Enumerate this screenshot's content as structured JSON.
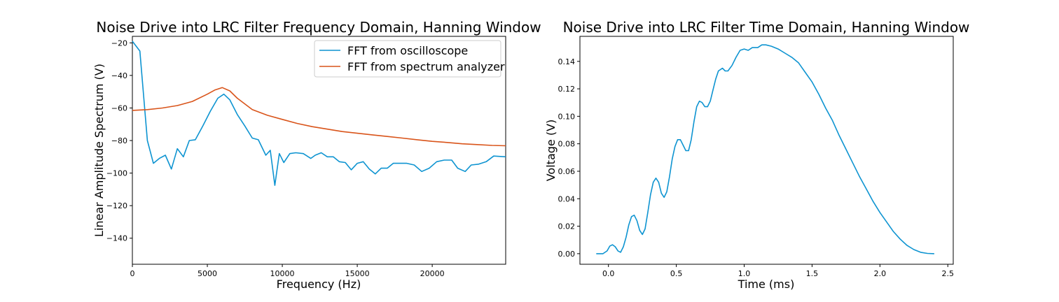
{
  "colors": {
    "oscilloscope": "#0e94d1",
    "analyzer": "#d9541a"
  },
  "chart_data": [
    {
      "type": "line",
      "title": "Noise Drive into LRC Filter Frequency Domain, Hanning Window",
      "xlabel": "Frequency (Hz)",
      "ylabel": "Linear Amplitude Spectrum (V)",
      "xlim": [
        0,
        24900
      ],
      "ylim": [
        -156,
        -16
      ],
      "xticks": [
        0,
        5000,
        10000,
        15000,
        20000
      ],
      "yticks": [
        -20,
        -40,
        -60,
        -80,
        -100,
        -120,
        -140
      ],
      "grid": false,
      "legend_position": "upper right",
      "series": [
        {
          "name": "FFT from oscilloscope",
          "color": "#0e94d1",
          "x": [
            0,
            500,
            1000,
            1400,
            1800,
            2200,
            2600,
            3000,
            3400,
            3800,
            4200,
            4700,
            5200,
            5700,
            6100,
            6500,
            7000,
            7500,
            8000,
            8400,
            8900,
            9200,
            9500,
            9800,
            10100,
            10500,
            10900,
            11400,
            11900,
            12200,
            12600,
            13000,
            13400,
            13800,
            14200,
            14600,
            15000,
            15400,
            15800,
            16200,
            16600,
            17000,
            17400,
            17800,
            18300,
            18800,
            19300,
            19800,
            20300,
            20800,
            21300,
            21700,
            22200,
            22600,
            23100,
            23600,
            24100,
            24900
          ],
          "values": [
            -19,
            -25,
            -80,
            -94,
            -91,
            -89,
            -97.5,
            -85,
            -90,
            -80,
            -79.5,
            -71,
            -62,
            -54,
            -51.5,
            -55,
            -64,
            -71,
            -78.5,
            -79.5,
            -89,
            -86,
            -107.5,
            -88,
            -93.5,
            -88,
            -87.5,
            -88,
            -91,
            -89,
            -87.5,
            -90,
            -90,
            -93,
            -93.5,
            -98,
            -94,
            -93,
            -97.5,
            -100.5,
            -97,
            -97,
            -94,
            -94,
            -94,
            -95,
            -99,
            -97,
            -93,
            -92,
            -92,
            -97,
            -99,
            -95,
            -94.5,
            -93,
            -89.5,
            -90
          ]
        },
        {
          "name": "FFT from spectrum analyzer",
          "color": "#d9541a",
          "x": [
            0,
            1000,
            2000,
            3000,
            4000,
            5000,
            5500,
            6000,
            6500,
            7000,
            8000,
            9000,
            10000,
            11000,
            12000,
            13000,
            14000,
            15000,
            16000,
            17000,
            18000,
            19000,
            20000,
            21000,
            22000,
            23000,
            24000,
            24900
          ],
          "values": [
            -61.5,
            -61,
            -60,
            -58.5,
            -56,
            -51.5,
            -49,
            -47.5,
            -49.5,
            -54,
            -61,
            -64.5,
            -67,
            -69.5,
            -71.5,
            -73,
            -74.5,
            -75.5,
            -76.5,
            -77.5,
            -78.5,
            -79.5,
            -80.5,
            -81.2,
            -82,
            -82.5,
            -83,
            -83.2
          ]
        }
      ]
    },
    {
      "type": "line",
      "title": "Noise Drive into LRC Filter Time Domain, Hanning Window",
      "xlabel": "Time (ms)",
      "ylabel": "Voltage (V)",
      "xlim": [
        -0.21,
        2.54
      ],
      "ylim": [
        -0.0077,
        0.1582
      ],
      "xticks": [
        0.0,
        0.5,
        1.0,
        1.5,
        2.0,
        2.5
      ],
      "xtick_labels": [
        "0.0",
        "0.5",
        "1.0",
        "1.5",
        "2.0",
        "2.5"
      ],
      "yticks": [
        0.0,
        0.02,
        0.04,
        0.06,
        0.08,
        0.1,
        0.12,
        0.14
      ],
      "ytick_labels": [
        "0.00",
        "0.02",
        "0.04",
        "0.06",
        "0.08",
        "0.10",
        "0.12",
        "0.14"
      ],
      "grid": false,
      "series": [
        {
          "color": "#0e94d1",
          "x": [
            -0.09,
            -0.04,
            -0.01,
            0.01,
            0.03,
            0.05,
            0.07,
            0.09,
            0.11,
            0.13,
            0.15,
            0.17,
            0.19,
            0.21,
            0.23,
            0.25,
            0.27,
            0.29,
            0.31,
            0.33,
            0.35,
            0.37,
            0.39,
            0.41,
            0.43,
            0.45,
            0.47,
            0.49,
            0.51,
            0.53,
            0.55,
            0.57,
            0.59,
            0.61,
            0.63,
            0.65,
            0.67,
            0.69,
            0.71,
            0.73,
            0.75,
            0.77,
            0.79,
            0.81,
            0.84,
            0.86,
            0.88,
            0.91,
            0.94,
            0.97,
            1.0,
            1.03,
            1.06,
            1.1,
            1.13,
            1.16,
            1.2,
            1.25,
            1.3,
            1.35,
            1.4,
            1.45,
            1.5,
            1.55,
            1.6,
            1.65,
            1.7,
            1.75,
            1.8,
            1.85,
            1.9,
            1.95,
            2.0,
            2.05,
            2.1,
            2.15,
            2.2,
            2.25,
            2.3,
            2.35,
            2.4
          ],
          "values": [
            0.0,
            0.0,
            0.002,
            0.0055,
            0.0065,
            0.005,
            0.002,
            0.001,
            0.005,
            0.012,
            0.021,
            0.027,
            0.028,
            0.024,
            0.017,
            0.014,
            0.018,
            0.03,
            0.043,
            0.052,
            0.055,
            0.052,
            0.044,
            0.041,
            0.045,
            0.056,
            0.069,
            0.078,
            0.083,
            0.083,
            0.079,
            0.075,
            0.075,
            0.083,
            0.096,
            0.107,
            0.111,
            0.11,
            0.107,
            0.107,
            0.111,
            0.119,
            0.127,
            0.133,
            0.135,
            0.133,
            0.133,
            0.137,
            0.143,
            0.148,
            0.149,
            0.148,
            0.15,
            0.15,
            0.152,
            0.152,
            0.151,
            0.149,
            0.146,
            0.143,
            0.139,
            0.132,
            0.125,
            0.116,
            0.106,
            0.097,
            0.086,
            0.076,
            0.066,
            0.056,
            0.047,
            0.038,
            0.03,
            0.023,
            0.016,
            0.0105,
            0.006,
            0.003,
            0.001,
            0.0002,
            0.0
          ]
        }
      ]
    }
  ]
}
